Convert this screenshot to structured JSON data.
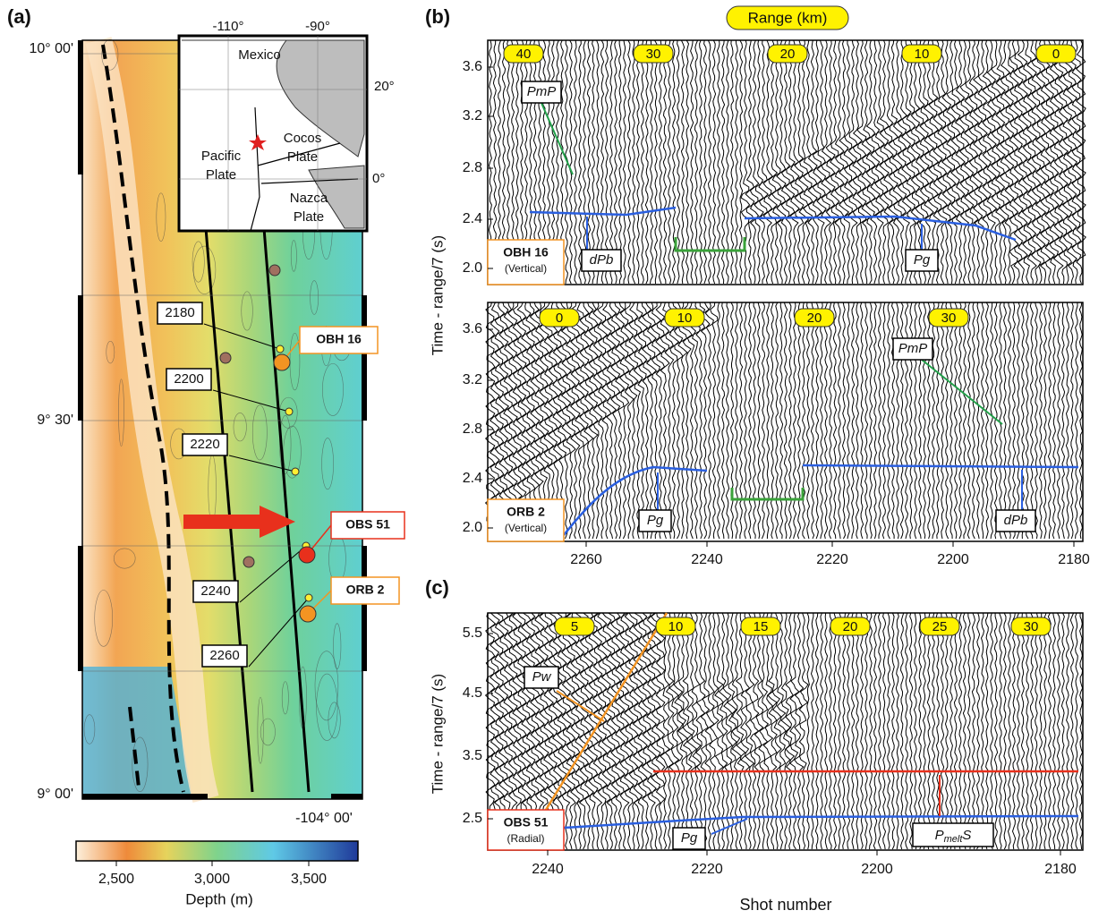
{
  "panel_a": {
    "label": "(a)",
    "lat_labels": [
      "10° 00'",
      "9° 30'",
      "9° 00'"
    ],
    "lon_label": "-104° 00'",
    "inset": {
      "lon_labels": [
        "-110°",
        "-90°"
      ],
      "lat_labels": [
        "20°",
        "0°"
      ],
      "mexico": "Mexico",
      "pacific": [
        "Pacific",
        "Plate"
      ],
      "cocos": [
        "Cocos",
        "Plate"
      ],
      "nazca": [
        "Nazca",
        "Plate"
      ]
    },
    "shot_labels": [
      "2180",
      "2200",
      "2220",
      "2240",
      "2260"
    ],
    "stations": [
      "OBH 16",
      "OBS 51",
      "ORB 2"
    ],
    "colorbar": {
      "ticks": [
        "2,500",
        "3,000",
        "3,500"
      ],
      "label": "Depth (m)"
    }
  },
  "panel_b": {
    "label": "(b)",
    "range_title": "Range (km)",
    "y_axis_label": "Time - range/7 (s)",
    "top": {
      "range_labels": [
        "40",
        "30",
        "20",
        "10",
        "0"
      ],
      "yticks": [
        "3.6",
        "3.2",
        "2.8",
        "2.4",
        "2.0"
      ],
      "phases": [
        "PmP",
        "dPb",
        "Pg"
      ],
      "station": "OBH 16",
      "component": "(Vertical)"
    },
    "bottom": {
      "range_labels": [
        "0",
        "10",
        "20",
        "30"
      ],
      "yticks": [
        "3.6",
        "3.2",
        "2.8",
        "2.4",
        "2.0"
      ],
      "phases": [
        "PmP",
        "Pg",
        "dPb"
      ],
      "station": "ORB 2",
      "component": "(Vertical)"
    },
    "xticks": [
      "2260",
      "2240",
      "2220",
      "2200",
      "2180"
    ]
  },
  "panel_c": {
    "label": "(c)",
    "y_axis_label": "Time - range/7 (s)",
    "range_labels": [
      "5",
      "10",
      "15",
      "20",
      "25",
      "30"
    ],
    "yticks": [
      "5.5",
      "4.5",
      "3.5",
      "2.5"
    ],
    "phases": [
      "Pw",
      "Pg"
    ],
    "pmelts": {
      "base": "P",
      "sub": "melt",
      "tail": "S"
    },
    "station": "OBS 51",
    "component": "(Radial)",
    "xticks": [
      "2240",
      "2220",
      "2200",
      "2180"
    ],
    "x_axis_label": "Shot number"
  }
}
